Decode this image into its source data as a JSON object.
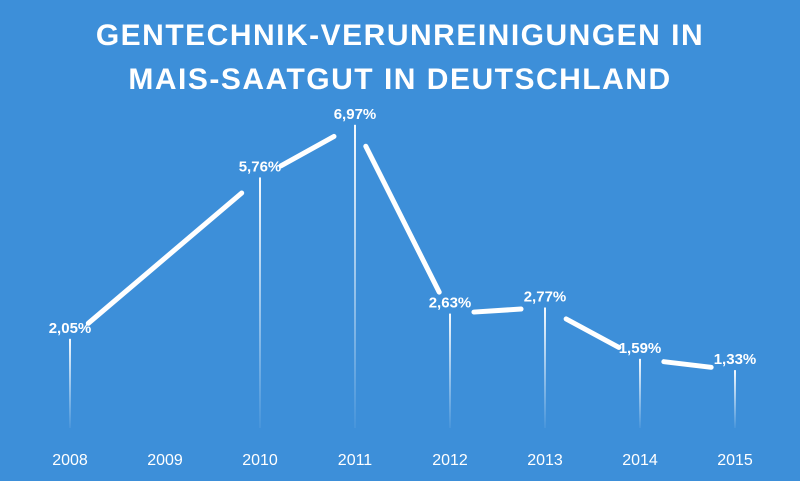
{
  "colors": {
    "background": "#3d8fd9",
    "foreground": "#ffffff"
  },
  "chart_data": {
    "type": "line",
    "title": "GENTECHNIK-VERUNREINIGUNGEN IN MAIS-SAATGUT IN DEUTSCHLAND",
    "title_lines": [
      "GENTECHNIK-VERUNREINIGUNGEN IN",
      "MAIS-SAATGUT IN DEUTSCHLAND"
    ],
    "categories": [
      "2008",
      "2009",
      "2010",
      "2011",
      "2012",
      "2013",
      "2014",
      "2015"
    ],
    "points": [
      {
        "x": "2008",
        "y": 2.05,
        "label": "2,05%"
      },
      {
        "x": "2010",
        "y": 5.76,
        "label": "5,76%"
      },
      {
        "x": "2011",
        "y": 6.97,
        "label": "6,97%"
      },
      {
        "x": "2012",
        "y": 2.63,
        "label": "2,63%"
      },
      {
        "x": "2013",
        "y": 2.77,
        "label": "2,77%"
      },
      {
        "x": "2014",
        "y": 1.59,
        "label": "1,59%"
      },
      {
        "x": "2015",
        "y": 1.33,
        "label": "1,33%"
      }
    ],
    "ylim": [
      0,
      7
    ],
    "grid": false,
    "legend": "none"
  }
}
